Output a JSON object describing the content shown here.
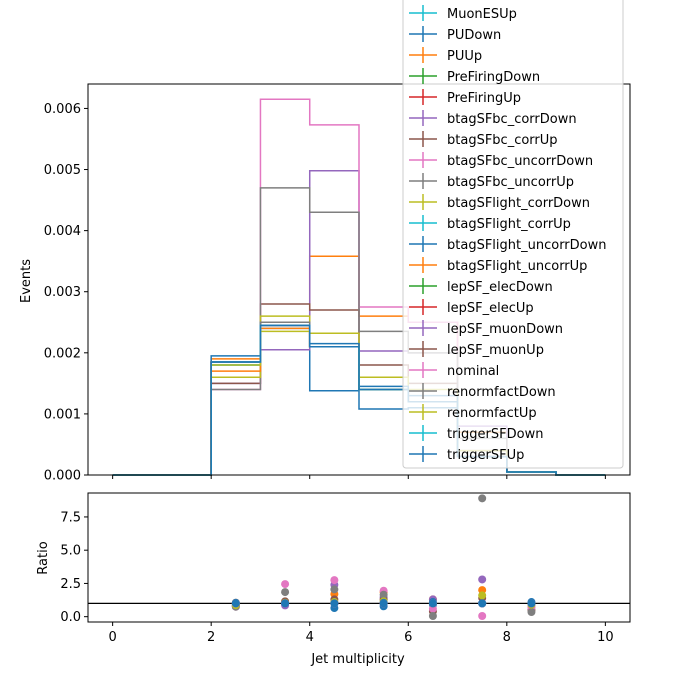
{
  "chart_data": [
    {
      "type": "line",
      "subtype": "step-histogram",
      "ylabel": "Events",
      "xlim": [
        -0.5,
        10.5
      ],
      "ylim": [
        0,
        0.0064
      ],
      "bin_edges": [
        0,
        1,
        2,
        3,
        4,
        5,
        6,
        7,
        8,
        9,
        10
      ],
      "xticks": [
        0,
        2,
        4,
        6,
        8,
        10
      ],
      "yticks": [
        "0.000",
        "0.001",
        "0.002",
        "0.003",
        "0.004",
        "0.005",
        "0.006"
      ],
      "ytick_values": [
        0,
        0.001,
        0.002,
        0.003,
        0.004,
        0.005,
        0.006
      ],
      "grid": false,
      "legend_position": "upper-right",
      "series": [
        {
          "name": "MuonESUp",
          "color": "#17becf",
          "values": [
            0,
            0,
            0.00185,
            0.00245,
            0.0021,
            0.0014,
            0.0012,
            0.0003,
            5e-05,
            0
          ]
        },
        {
          "name": "PUDown",
          "color": "#1f77b4",
          "values": [
            0,
            0,
            0.0018,
            0.0024,
            0.00138,
            0.00108,
            0.0011,
            0.0003,
            5e-05,
            0
          ]
        },
        {
          "name": "PUUp",
          "color": "#ff7f0e",
          "values": [
            0,
            0,
            0.0019,
            0.0025,
            0.00358,
            0.0026,
            0.0025,
            0.0007,
            5e-05,
            0
          ]
        },
        {
          "name": "PreFiringDown",
          "color": "#2ca02c",
          "values": [
            0,
            0,
            0.00185,
            0.00245,
            0.0021,
            0.0014,
            0.0012,
            0.0003,
            5e-05,
            0
          ]
        },
        {
          "name": "PreFiringUp",
          "color": "#d62728",
          "values": [
            0,
            0,
            0.00185,
            0.00245,
            0.0021,
            0.0014,
            0.0012,
            0.0003,
            5e-05,
            0
          ]
        },
        {
          "name": "btagSFbc_corrDown",
          "color": "#9467bd",
          "values": [
            0,
            0,
            0.0015,
            0.00205,
            0.00498,
            0.00203,
            0.002,
            0.0008,
            5e-05,
            0
          ]
        },
        {
          "name": "btagSFbc_corrUp",
          "color": "#8c564b",
          "values": [
            0,
            0,
            0.0015,
            0.0028,
            0.0027,
            0.0018,
            0.0015,
            0.0004,
            5e-05,
            0
          ]
        },
        {
          "name": "btagSFbc_uncorrDown",
          "color": "#e377c2",
          "values": [
            0,
            0,
            0.0014,
            0.00615,
            0.00573,
            0.00275,
            0.0025,
            0.0006,
            5e-05,
            0
          ]
        },
        {
          "name": "btagSFbc_uncorrUp",
          "color": "#7f7f7f",
          "values": [
            0,
            0,
            0.0014,
            0.0047,
            0.0043,
            0.00235,
            0.002,
            0.0006,
            5e-05,
            0
          ]
        },
        {
          "name": "btagSFlight_corrDown",
          "color": "#bcbd22",
          "values": [
            0,
            0,
            0.0016,
            0.0026,
            0.00232,
            0.0016,
            0.0014,
            0.0004,
            5e-05,
            0
          ]
        },
        {
          "name": "btagSFlight_corrUp",
          "color": "#17becf",
          "values": [
            0,
            0,
            0.0018,
            0.00245,
            0.0021,
            0.0014,
            0.0012,
            0.0003,
            5e-05,
            0
          ]
        },
        {
          "name": "btagSFlight_uncorrDown",
          "color": "#1f77b4",
          "values": [
            0,
            0,
            0.00195,
            0.0025,
            0.00215,
            0.00145,
            0.0013,
            0.0003,
            5e-05,
            0
          ]
        },
        {
          "name": "btagSFlight_uncorrUp",
          "color": "#ff7f0e",
          "values": [
            0,
            0,
            0.0017,
            0.0024,
            0.0021,
            0.0014,
            0.0012,
            0.0003,
            5e-05,
            0
          ]
        },
        {
          "name": "lepSF_elecDown",
          "color": "#2ca02c",
          "values": [
            0,
            0,
            0.00185,
            0.00245,
            0.0021,
            0.0014,
            0.0012,
            0.0003,
            5e-05,
            0
          ]
        },
        {
          "name": "lepSF_elecUp",
          "color": "#d62728",
          "values": [
            0,
            0,
            0.00185,
            0.00245,
            0.0021,
            0.0014,
            0.0012,
            0.0003,
            5e-05,
            0
          ]
        },
        {
          "name": "lepSF_muonDown",
          "color": "#9467bd",
          "values": [
            0,
            0,
            0.00185,
            0.00245,
            0.0021,
            0.0014,
            0.0012,
            0.0003,
            5e-05,
            0
          ]
        },
        {
          "name": "lepSF_muonUp",
          "color": "#8c564b",
          "values": [
            0,
            0,
            0.00185,
            0.00245,
            0.0021,
            0.0014,
            0.0012,
            0.0003,
            5e-05,
            0
          ]
        },
        {
          "name": "nominal",
          "color": "#e377c2",
          "values": [
            0,
            0,
            0.00185,
            0.00245,
            0.0021,
            0.0014,
            0.0012,
            0.0003,
            5e-05,
            0
          ]
        },
        {
          "name": "renormfactDown",
          "color": "#7f7f7f",
          "values": [
            0,
            0,
            0.00185,
            0.0025,
            0.0021,
            0.0014,
            0.0012,
            0.0003,
            5e-05,
            0
          ]
        },
        {
          "name": "renormfactUp",
          "color": "#bcbd22",
          "values": [
            0,
            0,
            0.0018,
            0.00235,
            0.0021,
            0.0014,
            0.0012,
            0.0003,
            5e-05,
            0
          ]
        },
        {
          "name": "triggerSFDown",
          "color": "#17becf",
          "values": [
            0,
            0,
            0.00185,
            0.00245,
            0.0021,
            0.0014,
            0.0012,
            0.0003,
            5e-05,
            0
          ]
        },
        {
          "name": "triggerSFUp",
          "color": "#1f77b4",
          "values": [
            0,
            0,
            0.00185,
            0.00245,
            0.0021,
            0.0014,
            0.0012,
            0.0003,
            5e-05,
            0
          ]
        }
      ]
    },
    {
      "type": "scatter",
      "xlabel": "Jet multiplicity",
      "ylabel": "Ratio",
      "xlim": [
        -0.5,
        10.5
      ],
      "ylim": [
        -0.4,
        9.3
      ],
      "xticks": [
        0,
        2,
        4,
        6,
        8,
        10
      ],
      "yticks": [
        "0.0",
        "2.5",
        "5.0",
        "7.5"
      ],
      "ytick_values": [
        0,
        2.5,
        5,
        7.5
      ],
      "reference_line": 1,
      "series": [
        {
          "name": "PUDown",
          "color": "#1f77b4",
          "x": [
            2.5,
            3.5,
            4.5,
            5.5,
            6.5,
            7.5,
            8.5
          ],
          "y": [
            0.9,
            0.95,
            0.65,
            0.78,
            0.9,
            1.0,
            1.0
          ]
        },
        {
          "name": "PUUp",
          "color": "#ff7f0e",
          "x": [
            2.5,
            3.5,
            4.5,
            5.5,
            6.5,
            7.5,
            8.5
          ],
          "y": [
            1.05,
            1.0,
            1.7,
            1.85,
            1.3,
            2.0,
            1.0
          ]
        },
        {
          "name": "btagSFbc_corrDown",
          "color": "#9467bd",
          "x": [
            2.5,
            3.5,
            4.5,
            5.5,
            6.5,
            7.5,
            8.5
          ],
          "y": [
            0.8,
            0.85,
            2.4,
            1.45,
            1.3,
            2.8,
            0.9
          ]
        },
        {
          "name": "btagSFbc_corrUp",
          "color": "#8c564b",
          "x": [
            2.5,
            3.5,
            4.5,
            5.5,
            6.5,
            7.5,
            8.5
          ],
          "y": [
            0.8,
            1.15,
            1.3,
            1.3,
            0.4,
            1.4,
            0.5
          ]
        },
        {
          "name": "btagSFbc_uncorrDown",
          "color": "#e377c2",
          "x": [
            2.5,
            3.5,
            4.5,
            5.5,
            6.5,
            7.5,
            8.5
          ],
          "y": [
            0.75,
            2.45,
            2.75,
            1.95,
            0.6,
            0.05,
            0.7
          ]
        },
        {
          "name": "btagSFbc_uncorrUp",
          "color": "#7f7f7f",
          "x": [
            2.5,
            3.5,
            4.5,
            5.5,
            6.5,
            7.5,
            8.5
          ],
          "y": [
            0.75,
            1.85,
            2.05,
            1.65,
            0.05,
            8.9,
            0.35
          ]
        },
        {
          "name": "btagSFlight_corrDown",
          "color": "#bcbd22",
          "x": [
            2.5,
            3.5,
            4.5,
            5.5,
            6.5,
            7.5,
            8.5
          ],
          "y": [
            0.87,
            1.05,
            1.1,
            1.15,
            1.0,
            1.6,
            0.9
          ]
        },
        {
          "name": "btagSFlight_uncorrDown",
          "color": "#1f77b4",
          "x": [
            2.5,
            3.5,
            4.5,
            5.5,
            6.5,
            7.5,
            8.5
          ],
          "y": [
            1.05,
            1.0,
            1.0,
            1.05,
            1.1,
            1.0,
            1.1
          ]
        },
        {
          "name": "renormfactDown",
          "color": "#7f7f7f",
          "x": [
            2.5,
            3.5,
            4.5,
            5.5,
            6.5,
            7.5,
            8.5
          ],
          "y": [
            1.0,
            1.02,
            1.0,
            1.0,
            1.0,
            1.0,
            1.0
          ]
        },
        {
          "name": "nominal",
          "color": "#e377c2",
          "x": [
            2.5,
            3.5,
            4.5,
            5.5,
            6.5,
            7.5,
            8.5
          ],
          "y": [
            1.0,
            1.0,
            1.0,
            1.0,
            1.0,
            1.0,
            1.0
          ]
        },
        {
          "name": "triggerSFUp",
          "color": "#1f77b4",
          "x": [
            2.5,
            3.5,
            4.5,
            5.5,
            6.5,
            7.5,
            8.5
          ],
          "y": [
            1.0,
            1.0,
            1.0,
            1.0,
            1.0,
            1.0,
            1.0
          ]
        }
      ]
    }
  ]
}
